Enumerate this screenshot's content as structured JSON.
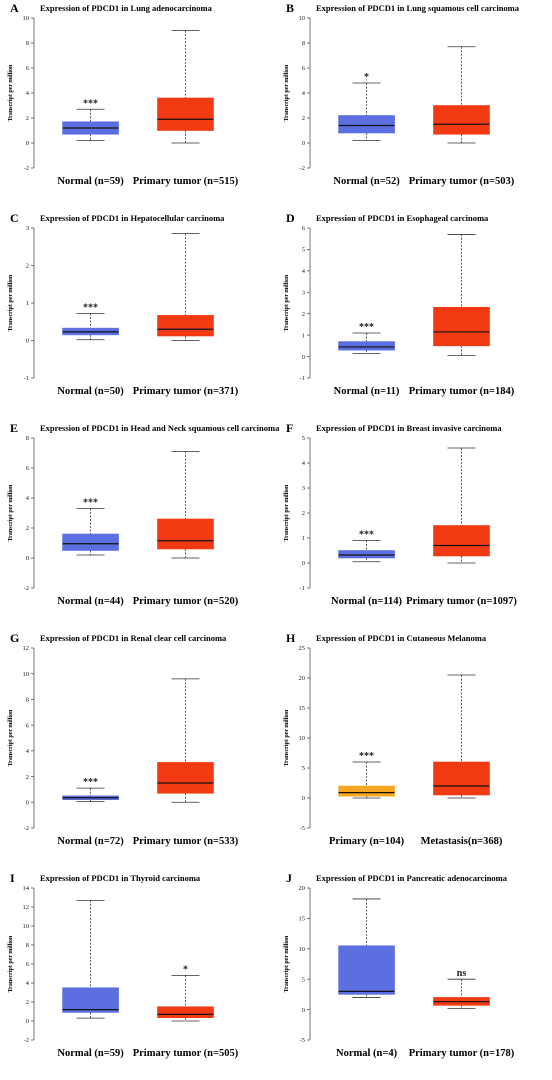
{
  "colors": {
    "normal": "#5c6fe0",
    "tumor": "#f23a12",
    "primary_melanoma": "#f5a623",
    "axis": "#555555",
    "whisker": "#333333",
    "median": "#111111"
  },
  "chart_data": [
    {
      "type": "box",
      "panel": "A",
      "title": "Expression of PDCD1 in Lung adenocarcinoma",
      "ylabel": "Transcript per million",
      "ylim": [
        -2,
        10
      ],
      "yticks": [
        -2,
        0,
        2,
        4,
        6,
        8,
        10
      ],
      "categories": [
        "Normal (n=59)",
        "Primary tumor (n=515)"
      ],
      "boxes": [
        {
          "min": 0.2,
          "q1": 0.7,
          "median": 1.2,
          "q3": 1.7,
          "max": 2.7,
          "color": "normal",
          "sig": "***"
        },
        {
          "min": 0.0,
          "q1": 1.0,
          "median": 1.9,
          "q3": 3.6,
          "max": 9.0,
          "color": "tumor",
          "sig": ""
        }
      ]
    },
    {
      "type": "box",
      "panel": "B",
      "title": "Expression of PDCD1 in Lung squamous cell carcinoma",
      "ylabel": "Transcript per million",
      "ylim": [
        -2,
        10
      ],
      "yticks": [
        -2,
        0,
        2,
        4,
        6,
        8,
        10
      ],
      "categories": [
        "Normal (n=52)",
        "Primary tumor (n=503)"
      ],
      "boxes": [
        {
          "min": 0.2,
          "q1": 0.8,
          "median": 1.4,
          "q3": 2.2,
          "max": 4.8,
          "color": "normal",
          "sig": "*"
        },
        {
          "min": 0.0,
          "q1": 0.7,
          "median": 1.5,
          "q3": 3.0,
          "max": 7.7,
          "color": "tumor",
          "sig": ""
        }
      ]
    },
    {
      "type": "box",
      "panel": "C",
      "title": "Expression of PDCD1 in Hepatocellular carcinoma",
      "ylabel": "Transcript per million",
      "ylim": [
        -1,
        3
      ],
      "yticks": [
        -1,
        0,
        1,
        2,
        3
      ],
      "categories": [
        "Normal (n=50)",
        "Primary tumor (n=371)"
      ],
      "boxes": [
        {
          "min": 0.02,
          "q1": 0.15,
          "median": 0.23,
          "q3": 0.33,
          "max": 0.72,
          "color": "normal",
          "sig": "***"
        },
        {
          "min": 0.0,
          "q1": 0.12,
          "median": 0.3,
          "q3": 0.67,
          "max": 2.85,
          "color": "tumor",
          "sig": ""
        }
      ]
    },
    {
      "type": "box",
      "panel": "D",
      "title": "Expression of PDCD1 in Esophageal carcinoma",
      "ylabel": "Transcript per million",
      "ylim": [
        -1,
        6
      ],
      "yticks": [
        -1,
        0,
        1,
        2,
        3,
        4,
        5,
        6
      ],
      "categories": [
        "Normal (n=11)",
        "Primary tumor (n=184)"
      ],
      "boxes": [
        {
          "min": 0.15,
          "q1": 0.3,
          "median": 0.45,
          "q3": 0.7,
          "max": 1.1,
          "color": "normal",
          "sig": "***"
        },
        {
          "min": 0.05,
          "q1": 0.5,
          "median": 1.15,
          "q3": 2.3,
          "max": 5.7,
          "color": "tumor",
          "sig": ""
        }
      ]
    },
    {
      "type": "box",
      "panel": "E",
      "title": "Expression of PDCD1 in Head and Neck squamous cell carcinoma",
      "ylabel": "Transcript per million",
      "ylim": [
        -2,
        8
      ],
      "yticks": [
        -2,
        0,
        2,
        4,
        6,
        8
      ],
      "categories": [
        "Normal (n=44)",
        "Primary tumor (n=520)"
      ],
      "boxes": [
        {
          "min": 0.2,
          "q1": 0.5,
          "median": 0.95,
          "q3": 1.6,
          "max": 3.3,
          "color": "normal",
          "sig": "***"
        },
        {
          "min": 0.0,
          "q1": 0.6,
          "median": 1.15,
          "q3": 2.6,
          "max": 7.1,
          "color": "tumor",
          "sig": ""
        }
      ]
    },
    {
      "type": "box",
      "panel": "F",
      "title": "Expression of PDCD1 in Breast invasive carcinoma",
      "ylabel": "Transcript per million",
      "ylim": [
        -1,
        5
      ],
      "yticks": [
        -1,
        0,
        1,
        2,
        3,
        4,
        5
      ],
      "categories": [
        "Normal (n=114)",
        "Primary tumor (n=1097)"
      ],
      "boxes": [
        {
          "min": 0.05,
          "q1": 0.2,
          "median": 0.32,
          "q3": 0.5,
          "max": 0.9,
          "color": "normal",
          "sig": "***"
        },
        {
          "min": 0.0,
          "q1": 0.28,
          "median": 0.7,
          "q3": 1.5,
          "max": 4.6,
          "color": "tumor",
          "sig": ""
        }
      ]
    },
    {
      "type": "box",
      "panel": "G",
      "title": "Expression of PDCD1 in Renal clear cell carcinoma",
      "ylabel": "Transcript per million",
      "ylim": [
        -2,
        12
      ],
      "yticks": [
        -2,
        0,
        2,
        4,
        6,
        8,
        10,
        12
      ],
      "categories": [
        "Normal (n=72)",
        "Primary tumor (n=533)"
      ],
      "boxes": [
        {
          "min": 0.05,
          "q1": 0.2,
          "median": 0.35,
          "q3": 0.5,
          "max": 1.1,
          "color": "normal",
          "sig": "***"
        },
        {
          "min": 0.0,
          "q1": 0.7,
          "median": 1.5,
          "q3": 3.1,
          "max": 9.6,
          "color": "tumor",
          "sig": ""
        }
      ]
    },
    {
      "type": "box",
      "panel": "H",
      "title": "Expression of PDCD1 in Cutaneous Melanoma",
      "ylabel": "Transcript per million",
      "ylim": [
        -5,
        25
      ],
      "yticks": [
        -5,
        0,
        5,
        10,
        15,
        20,
        25
      ],
      "categories": [
        "Primary (n=104)",
        "Metastasis(n=368)"
      ],
      "boxes": [
        {
          "min": 0.0,
          "q1": 0.3,
          "median": 0.9,
          "q3": 2.0,
          "max": 6.0,
          "color": "primary_melanoma",
          "sig": "***"
        },
        {
          "min": 0.0,
          "q1": 0.5,
          "median": 2.0,
          "q3": 6.0,
          "max": 20.5,
          "color": "tumor",
          "sig": ""
        }
      ]
    },
    {
      "type": "box",
      "panel": "I",
      "title": "Expression of PDCD1 in Thyroid carcinoma",
      "ylabel": "Transcript per million",
      "ylim": [
        -2,
        14
      ],
      "yticks": [
        -2,
        0,
        2,
        4,
        6,
        8,
        10,
        12,
        14
      ],
      "categories": [
        "Normal (n=59)",
        "Primary tumor (n=505)"
      ],
      "boxes": [
        {
          "min": 0.3,
          "q1": 0.9,
          "median": 1.2,
          "q3": 3.5,
          "max": 12.7,
          "color": "normal",
          "sig": ""
        },
        {
          "min": 0.0,
          "q1": 0.35,
          "median": 0.7,
          "q3": 1.5,
          "max": 4.8,
          "color": "tumor",
          "sig": "*"
        }
      ]
    },
    {
      "type": "box",
      "panel": "J",
      "title": "Expression of PDCD1 in Pancreatic adenocarcinoma",
      "ylabel": "Transcript per million",
      "ylim": [
        -5,
        20
      ],
      "yticks": [
        -5,
        0,
        5,
        10,
        15,
        20
      ],
      "categories": [
        "Normal (n=4)",
        "Primary tumor (n=178)"
      ],
      "boxes": [
        {
          "min": 2.0,
          "q1": 2.5,
          "median": 3.0,
          "q3": 10.5,
          "max": 18.2,
          "color": "normal",
          "sig": ""
        },
        {
          "min": 0.2,
          "q1": 0.7,
          "median": 1.3,
          "q3": 2.0,
          "max": 5.0,
          "color": "tumor",
          "sig": "ns"
        }
      ]
    }
  ]
}
